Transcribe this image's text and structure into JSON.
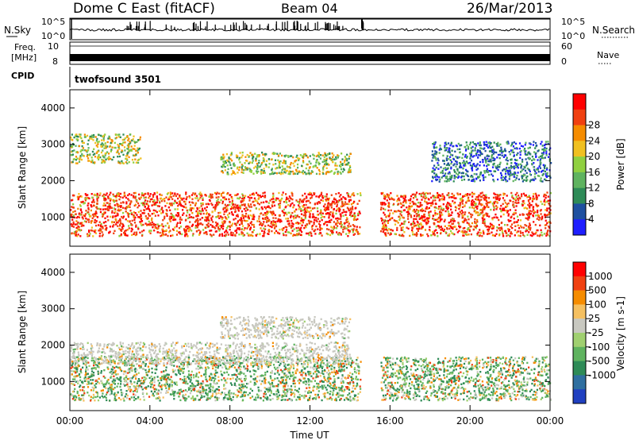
{
  "header": {
    "station": "Dome C East (fitACF)",
    "beam": "Beam 04",
    "date": "26/Mar/2013"
  },
  "top_panels": {
    "nsky_label": "N.Sky",
    "nsearch_label": "N.Search",
    "nsky_ticks": [
      "10^5",
      "10^0"
    ],
    "nsearch_ticks": [
      "10^5",
      "10^0"
    ],
    "freq_label_1": "Freq.",
    "freq_label_2": "[MHz]",
    "freq_ticks": [
      "10",
      "8"
    ],
    "nave_label": "Nave",
    "nave_ticks": [
      "60",
      "0"
    ],
    "cpid_label": "CPID",
    "cpid_value": "twofsound 3501"
  },
  "chart_data": [
    {
      "type": "heatmap",
      "quantity": "power",
      "xlabel": "",
      "ylabel": "Slant Range [km]",
      "xlim": [
        0,
        24
      ],
      "ylim": [
        200,
        4500
      ],
      "yticks": [
        "1000",
        "2000",
        "3000",
        "4000"
      ],
      "colorbar": {
        "label": "Power [dB]",
        "ticks": [
          "4",
          "8",
          "12",
          "16",
          "20",
          "24",
          "28"
        ],
        "colors": [
          "#1e1eff",
          "#1e50a0",
          "#2e8b57",
          "#5fb35f",
          "#90d040",
          "#f0c020",
          "#f58c00",
          "#f04010",
          "#ff0000"
        ]
      },
      "regions": [
        {
          "t0": 0.0,
          "t1": 14.5,
          "r0": 500,
          "r1": 1700,
          "level": "high"
        },
        {
          "t0": 15.5,
          "t1": 24.0,
          "r0": 500,
          "r1": 1700,
          "level": "high"
        },
        {
          "t0": 0.0,
          "t1": 3.5,
          "r0": 2500,
          "r1": 3300,
          "level": "mid"
        },
        {
          "t0": 7.5,
          "t1": 14.0,
          "r0": 2200,
          "r1": 2800,
          "level": "mid"
        },
        {
          "t0": 18.0,
          "t1": 24.0,
          "r0": 2000,
          "r1": 3100,
          "level": "low"
        }
      ]
    },
    {
      "type": "heatmap",
      "quantity": "velocity",
      "xlabel": "Time UT",
      "ylabel": "Slant Range [km]",
      "xlim": [
        0,
        24
      ],
      "ylim": [
        200,
        4500
      ],
      "xticks": [
        "00:00",
        "04:00",
        "08:00",
        "12:00",
        "16:00",
        "20:00",
        "00:00"
      ],
      "yticks": [
        "1000",
        "2000",
        "3000",
        "4000"
      ],
      "colorbar": {
        "label": "Velocity [m s-1]",
        "ticks": [
          "1000",
          "500",
          "100",
          "25",
          "-25",
          "-100",
          "-500",
          "-1000"
        ],
        "colors": [
          "#2040c0",
          "#2f6fa0",
          "#2e8b57",
          "#5fb35f",
          "#a0d070",
          "#c8c8c0",
          "#f5c060",
          "#f58c00",
          "#f04010",
          "#ff0000"
        ]
      },
      "regions": [
        {
          "t0": 0.0,
          "t1": 14.5,
          "r0": 500,
          "r1": 1700,
          "level": "mixed"
        },
        {
          "t0": 15.5,
          "t1": 24.0,
          "r0": 500,
          "r1": 1700,
          "level": "mixed"
        },
        {
          "t0": 0.0,
          "t1": 14.0,
          "r0": 1500,
          "r1": 2100,
          "level": "grey"
        },
        {
          "t0": 7.5,
          "t1": 14.0,
          "r0": 2200,
          "r1": 2800,
          "level": "grey"
        }
      ]
    }
  ]
}
